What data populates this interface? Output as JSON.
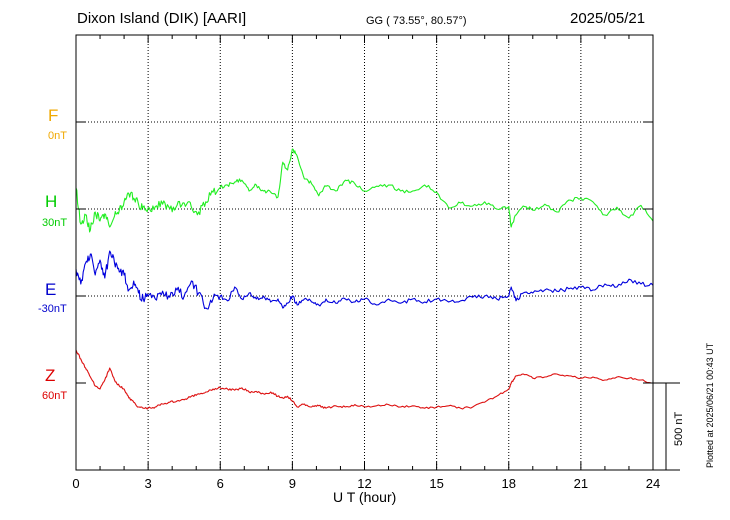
{
  "header": {
    "station": "Dixon Island (DIK)  [AARI]",
    "coords": "GG ( 73.55°,  80.57°)",
    "date": "2025/05/21"
  },
  "footer": {
    "plotted": "Plotted at 2025/06/21 00:43 UT"
  },
  "chart_data": {
    "type": "line",
    "xlabel": "U T (hour)",
    "xlim": [
      0,
      24
    ],
    "xticks": [
      0,
      3,
      6,
      9,
      12,
      15,
      18,
      21,
      24
    ],
    "scale_bar": "500 nT",
    "grid": true,
    "channels": [
      {
        "name": "F",
        "baseline": "0nT",
        "color": "#f0a800"
      },
      {
        "name": "H",
        "baseline": "30nT",
        "color": "#00cc00"
      },
      {
        "name": "E",
        "baseline": "-30nT",
        "color": "#0000cc"
      },
      {
        "name": "Z",
        "baseline": "60nT",
        "color": "#dd0000"
      }
    ],
    "series": [
      {
        "name": "H",
        "color": "#22ee22",
        "x": [
          0,
          0.2,
          0.4,
          0.6,
          0.8,
          1,
          1.2,
          1.4,
          1.6,
          1.8,
          2,
          2.2,
          2.4,
          2.6,
          2.8,
          3,
          3.3,
          3.6,
          3.9,
          4.2,
          4.5,
          4.8,
          5.1,
          5.4,
          5.7,
          6,
          6.3,
          6.6,
          6.9,
          7.2,
          7.5,
          7.8,
          8.1,
          8.4,
          8.6,
          8.8,
          9,
          9.2,
          9.5,
          9.8,
          10.1,
          10.4,
          10.8,
          11.2,
          11.6,
          12,
          12.5,
          13,
          13.5,
          14,
          14.5,
          15,
          15.5,
          16,
          16.5,
          17,
          17.5,
          18,
          18.1,
          18.3,
          18.6,
          19,
          19.5,
          20,
          20.5,
          21,
          21.5,
          22,
          22.5,
          23,
          23.5,
          24
        ],
        "y": [
          35,
          -25,
          -10,
          -35,
          -5,
          -20,
          -8,
          -30,
          -12,
          -2,
          12,
          25,
          18,
          8,
          4,
          2,
          4,
          8,
          0,
          6,
          10,
          3,
          -5,
          12,
          28,
          36,
          40,
          45,
          48,
          30,
          40,
          30,
          28,
          20,
          78,
          65,
          100,
          88,
          50,
          42,
          22,
          38,
          30,
          48,
          42,
          30,
          38,
          40,
          30,
          30,
          40,
          28,
          2,
          10,
          5,
          12,
          0,
          4,
          -30,
          -10,
          5,
          -2,
          8,
          -5,
          15,
          18,
          12,
          -10,
          3,
          -15,
          6,
          -20
        ]
      },
      {
        "name": "E",
        "color": "#0000dd",
        "x": [
          0,
          0.2,
          0.4,
          0.6,
          0.8,
          1,
          1.2,
          1.4,
          1.6,
          1.8,
          2,
          2.2,
          2.4,
          2.6,
          2.8,
          3,
          3.3,
          3.6,
          3.9,
          4.2,
          4.5,
          4.8,
          5.1,
          5.4,
          5.7,
          6,
          6.3,
          6.6,
          6.9,
          7.2,
          7.5,
          7.8,
          8.1,
          8.4,
          8.6,
          8.8,
          9,
          9.2,
          9.5,
          9.8,
          10.1,
          10.4,
          10.8,
          11.2,
          11.6,
          12,
          12.5,
          13,
          13.5,
          14,
          14.5,
          15,
          15.5,
          16,
          16.5,
          17,
          17.5,
          18,
          18.1,
          18.3,
          18.6,
          19,
          19.5,
          20,
          20.5,
          21,
          21.5,
          22,
          22.5,
          23,
          23.5,
          24
        ],
        "y": [
          45,
          20,
          55,
          70,
          35,
          60,
          30,
          75,
          55,
          40,
          35,
          10,
          25,
          5,
          -5,
          0,
          -5,
          8,
          -2,
          10,
          0,
          25,
          5,
          -20,
          -5,
          0,
          -8,
          15,
          -5,
          5,
          -5,
          0,
          -10,
          -5,
          -20,
          -12,
          0,
          -15,
          -5,
          -10,
          -15,
          -5,
          -12,
          -5,
          -10,
          -5,
          -15,
          -5,
          -12,
          -5,
          -10,
          -5,
          -10,
          -8,
          -2,
          0,
          -5,
          0,
          15,
          -8,
          5,
          5,
          10,
          8,
          12,
          15,
          10,
          20,
          15,
          28,
          20,
          18
        ]
      },
      {
        "name": "Z",
        "color": "#dd1111",
        "x": [
          0,
          0.2,
          0.4,
          0.6,
          0.8,
          1,
          1.2,
          1.4,
          1.6,
          1.8,
          2,
          2.2,
          2.4,
          2.6,
          2.8,
          3,
          3.3,
          3.6,
          3.9,
          4.2,
          4.5,
          4.8,
          5.1,
          5.4,
          5.7,
          6,
          6.3,
          6.6,
          6.9,
          7.2,
          7.5,
          7.8,
          8.1,
          8.4,
          8.6,
          8.8,
          9,
          9.2,
          9.5,
          9.8,
          10.1,
          10.4,
          10.8,
          11.2,
          11.6,
          12,
          12.5,
          13,
          13.5,
          14,
          14.5,
          15,
          15.5,
          16,
          16.5,
          17,
          17.5,
          18,
          18.1,
          18.3,
          18.6,
          19,
          19.5,
          20,
          20.5,
          21,
          21.5,
          22,
          22.5,
          23,
          23.5,
          24
        ],
        "y": [
          55,
          40,
          25,
          10,
          -5,
          -10,
          5,
          25,
          5,
          -5,
          -10,
          -25,
          -32,
          -40,
          -42,
          -42,
          -40,
          -35,
          -32,
          -30,
          -28,
          -22,
          -18,
          -15,
          -10,
          -8,
          -10,
          -12,
          -8,
          -15,
          -14,
          -18,
          -15,
          -22,
          -25,
          -22,
          -30,
          -40,
          -35,
          -40,
          -38,
          -42,
          -38,
          -40,
          -36,
          -40,
          -38,
          -36,
          -40,
          -38,
          -42,
          -40,
          -38,
          -42,
          -40,
          -32,
          -22,
          -10,
          0,
          12,
          15,
          8,
          10,
          15,
          12,
          8,
          10,
          5,
          10,
          8,
          5,
          0
        ]
      }
    ]
  }
}
